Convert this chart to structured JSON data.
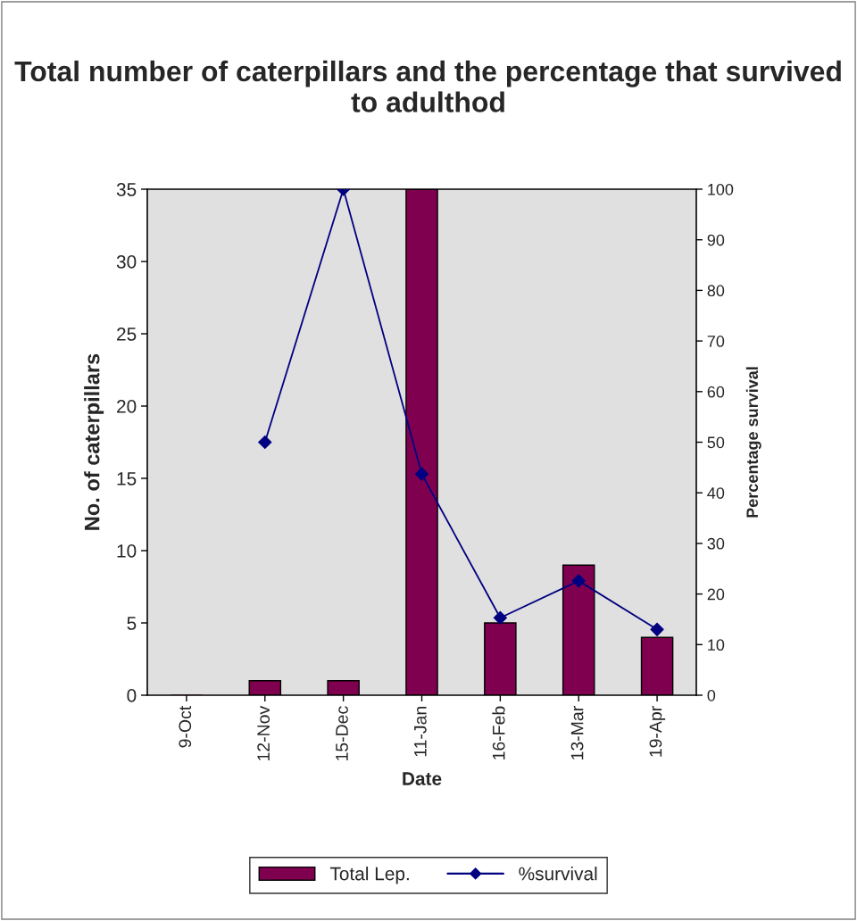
{
  "chart_data": {
    "type": "bar",
    "title": "Total number of caterpillars and the percentage that survived to adulthod",
    "xlabel": "Date",
    "ylabel": "No. of caterpillars",
    "y2label": "Percentage survival",
    "categories": [
      "9-Oct",
      "12-Nov",
      "15-Dec",
      "11-Jan",
      "16-Feb",
      "13-Mar",
      "19-Apr"
    ],
    "series": [
      {
        "name": "Total Lep.",
        "color": "#800050",
        "values": [
          0,
          1,
          1,
          35,
          5,
          9,
          4
        ]
      },
      {
        "name": "%survival",
        "type": "line",
        "axis": "y2",
        "color": "#000080",
        "marker": "diamond",
        "values": [
          null,
          50,
          100,
          43.7,
          15.3,
          22.6,
          13
        ]
      }
    ],
    "ylim": [
      0,
      35
    ],
    "yticks": [
      0,
      5,
      10,
      15,
      20,
      25,
      30,
      35
    ],
    "y2lim": [
      0,
      100
    ],
    "y2ticks": [
      0,
      10,
      20,
      30,
      40,
      50,
      60,
      70,
      80,
      90,
      100
    ],
    "grid": false,
    "legend": "bottom"
  }
}
